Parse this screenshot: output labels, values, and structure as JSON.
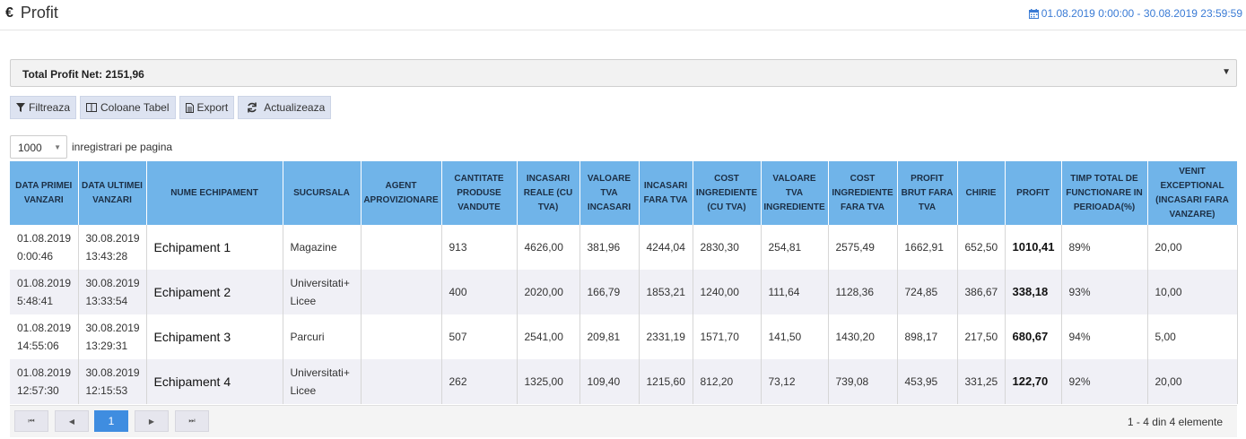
{
  "header": {
    "title": "Profit",
    "currency_symbol": "€",
    "date_range": "01.08.2019 0:00:00 - 30.08.2019 23:59:59"
  },
  "summary": {
    "label": "Total Profit Net: 2151,96"
  },
  "toolbar": {
    "filter_label": "Filtreaza",
    "columns_label": "Coloane Tabel",
    "export_label": "Export",
    "refresh_label": "Actualizeaza"
  },
  "page_size": {
    "value": "1000",
    "label": "inregistrari pe pagina"
  },
  "table": {
    "headers": [
      "DATA PRIMEI VANZARI",
      "DATA ULTIMEI VANZARI",
      "NUME ECHIPAMENT",
      "SUCURSALA",
      "AGENT APROVIZIONARE",
      "CANTITATE PRODUSE VANDUTE",
      "INCASARI REALE (CU TVA)",
      "VALOARE TVA INCASARI",
      "INCASARI FARA TVA",
      "COST INGREDIENTE (CU TVA)",
      "VALOARE TVA INGREDIENTE",
      "COST INGREDIENTE FARA TVA",
      "PROFIT BRUT FARA TVA",
      "CHIRIE",
      "PROFIT",
      "TIMP TOTAL DE FUNCTIONARE IN PERIOADA(%)",
      "VENIT EXCEPTIONAL (INCASARI FARA VANZARE)"
    ],
    "rows": [
      [
        "01.08.2019 0:00:46",
        "30.08.2019 13:43:28",
        "Echipament 1",
        "Magazine",
        "",
        "913",
        "4626,00",
        "381,96",
        "4244,04",
        "2830,30",
        "254,81",
        "2575,49",
        "1662,91",
        "652,50",
        "1010,41",
        "89%",
        "20,00"
      ],
      [
        "01.08.2019 5:48:41",
        "30.08.2019 13:33:54",
        "Echipament 2",
        "Universitati+ Licee",
        "",
        "400",
        "2020,00",
        "166,79",
        "1853,21",
        "1240,00",
        "111,64",
        "1128,36",
        "724,85",
        "386,67",
        "338,18",
        "93%",
        "10,00"
      ],
      [
        "01.08.2019 14:55:06",
        "30.08.2019 13:29:31",
        "Echipament 3",
        "Parcuri",
        "",
        "507",
        "2541,00",
        "209,81",
        "2331,19",
        "1571,70",
        "141,50",
        "1430,20",
        "898,17",
        "217,50",
        "680,67",
        "94%",
        "5,00"
      ],
      [
        "01.08.2019 12:57:30",
        "30.08.2019 12:15:53",
        "Echipament 4",
        "Universitati+ Licee",
        "",
        "262",
        "1325,00",
        "109,40",
        "1215,60",
        "812,20",
        "73,12",
        "739,08",
        "453,95",
        "331,25",
        "122,70",
        "92%",
        "20,00"
      ]
    ]
  },
  "pagination": {
    "first": "⏮",
    "prev": "◀",
    "current": "1",
    "next": "▶",
    "last": "⏭",
    "info": "1 - 4 din 4 elemente"
  },
  "colors": {
    "header_bg": "#70b4e9",
    "accent": "#3f8de0",
    "date_color": "#3a7bd5"
  }
}
